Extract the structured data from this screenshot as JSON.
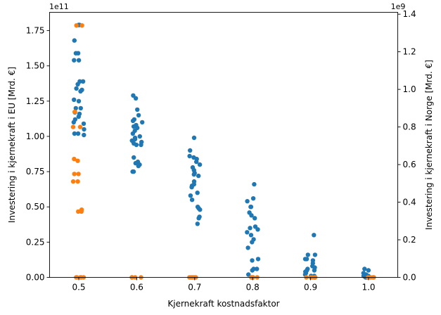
{
  "chart_data": {
    "type": "scatter",
    "xlabel": "Kjernekraft kostnadsfaktor",
    "ylabel_left": "Investering i kjernekraft i EU [Mrd. €]",
    "ylabel_right": "Investering i kjernekraft i Norge [Mrd. €]",
    "offset_left": "1e11",
    "offset_right": "1e9",
    "categories": [
      "0.5",
      "0.6",
      "0.7",
      "0.8",
      "0.9",
      "1.0"
    ],
    "ylim_left": [
      0,
      1.88
    ],
    "ylim_right": [
      0,
      1.41
    ],
    "yticks_left": [
      "0.00",
      "0.25",
      "0.50",
      "0.75",
      "1.00",
      "1.25",
      "1.50",
      "1.75"
    ],
    "yticks_right": [
      "0.0",
      "0.2",
      "0.4",
      "0.6",
      "0.8",
      "1.0",
      "1.2",
      "1.4"
    ],
    "series": [
      {
        "name": "EU",
        "axis": "left",
        "color": "#1f77b4",
        "points": [
          [
            0,
            1.79
          ],
          [
            0,
            1.79
          ],
          [
            0,
            1.68
          ],
          [
            0,
            1.59
          ],
          [
            0,
            1.59
          ],
          [
            0,
            1.54
          ],
          [
            0,
            1.54
          ],
          [
            0,
            1.39
          ],
          [
            0,
            1.39
          ],
          [
            0,
            1.37
          ],
          [
            0,
            1.34
          ],
          [
            0,
            1.33
          ],
          [
            0,
            1.32
          ],
          [
            0,
            1.26
          ],
          [
            0,
            1.25
          ],
          [
            0,
            1.2
          ],
          [
            0,
            1.2
          ],
          [
            0,
            1.17
          ],
          [
            0,
            1.16
          ],
          [
            0,
            1.14
          ],
          [
            0,
            1.12
          ],
          [
            0,
            1.1
          ],
          [
            0,
            1.09
          ],
          [
            0,
            1.05
          ],
          [
            0,
            1.02
          ],
          [
            0,
            1.02
          ],
          [
            0,
            1.01
          ],
          [
            1,
            1.29
          ],
          [
            1,
            1.27
          ],
          [
            1,
            1.19
          ],
          [
            1,
            1.15
          ],
          [
            1,
            1.12
          ],
          [
            1,
            1.11
          ],
          [
            1,
            1.1
          ],
          [
            1,
            1.08
          ],
          [
            1,
            1.07
          ],
          [
            1,
            1.06
          ],
          [
            1,
            1.04
          ],
          [
            1,
            1.02
          ],
          [
            1,
            1.0
          ],
          [
            1,
            0.99
          ],
          [
            1,
            0.98
          ],
          [
            1,
            0.97
          ],
          [
            1,
            0.96
          ],
          [
            1,
            0.95
          ],
          [
            1,
            0.94
          ],
          [
            1,
            0.94
          ],
          [
            1,
            0.85
          ],
          [
            1,
            0.82
          ],
          [
            1,
            0.81
          ],
          [
            1,
            0.8
          ],
          [
            1,
            0.79
          ],
          [
            1,
            0.75
          ],
          [
            1,
            0.75
          ],
          [
            2,
            0.99
          ],
          [
            2,
            0.9
          ],
          [
            2,
            0.86
          ],
          [
            2,
            0.85
          ],
          [
            2,
            0.84
          ],
          [
            2,
            0.82
          ],
          [
            2,
            0.8
          ],
          [
            2,
            0.78
          ],
          [
            2,
            0.76
          ],
          [
            2,
            0.74
          ],
          [
            2,
            0.73
          ],
          [
            2,
            0.72
          ],
          [
            2,
            0.68
          ],
          [
            2,
            0.66
          ],
          [
            2,
            0.65
          ],
          [
            2,
            0.64
          ],
          [
            2,
            0.6
          ],
          [
            2,
            0.58
          ],
          [
            2,
            0.55
          ],
          [
            2,
            0.5
          ],
          [
            2,
            0.49
          ],
          [
            2,
            0.48
          ],
          [
            2,
            0.43
          ],
          [
            2,
            0.42
          ],
          [
            2,
            0.38
          ],
          [
            3,
            0.66
          ],
          [
            3,
            0.56
          ],
          [
            3,
            0.54
          ],
          [
            3,
            0.5
          ],
          [
            3,
            0.5
          ],
          [
            3,
            0.46
          ],
          [
            3,
            0.44
          ],
          [
            3,
            0.42
          ],
          [
            3,
            0.36
          ],
          [
            3,
            0.35
          ],
          [
            3,
            0.34
          ],
          [
            3,
            0.32
          ],
          [
            3,
            0.3
          ],
          [
            3,
            0.27
          ],
          [
            3,
            0.25
          ],
          [
            3,
            0.21
          ],
          [
            3,
            0.13
          ],
          [
            3,
            0.12
          ],
          [
            3,
            0.06
          ],
          [
            3,
            0.06
          ],
          [
            3,
            0.05
          ],
          [
            3,
            0.02
          ],
          [
            4,
            0.3
          ],
          [
            4,
            0.16
          ],
          [
            4,
            0.16
          ],
          [
            4,
            0.13
          ],
          [
            4,
            0.13
          ],
          [
            4,
            0.12
          ],
          [
            4,
            0.1
          ],
          [
            4,
            0.08
          ],
          [
            4,
            0.07
          ],
          [
            4,
            0.06
          ],
          [
            4,
            0.05
          ],
          [
            4,
            0.05
          ],
          [
            4,
            0.04
          ],
          [
            4,
            0.03
          ],
          [
            4,
            0.02
          ],
          [
            4,
            0.01
          ],
          [
            4,
            0.01
          ],
          [
            4,
            0.0
          ],
          [
            5,
            0.06
          ],
          [
            5,
            0.05
          ],
          [
            5,
            0.03
          ],
          [
            5,
            0.02
          ],
          [
            5,
            0.01
          ],
          [
            5,
            0.01
          ],
          [
            5,
            0.0
          ],
          [
            5,
            0.0
          ]
        ]
      },
      {
        "name": "Norge",
        "axis": "right",
        "color": "#ff7f0e",
        "points": [
          [
            0,
            1.34
          ],
          [
            0,
            1.34
          ],
          [
            0,
            0.88
          ],
          [
            0,
            0.88
          ],
          [
            0,
            0.8
          ],
          [
            0,
            0.8
          ],
          [
            0,
            0.63
          ],
          [
            0,
            0.62
          ],
          [
            0,
            0.55
          ],
          [
            0,
            0.55
          ],
          [
            0,
            0.51
          ],
          [
            0,
            0.51
          ],
          [
            0,
            0.36
          ],
          [
            0,
            0.35
          ],
          [
            0,
            0.35
          ],
          [
            0,
            0.0
          ],
          [
            0,
            0.0
          ],
          [
            0,
            0.0
          ],
          [
            0,
            0.0
          ],
          [
            0,
            0.0
          ],
          [
            1,
            0.0
          ],
          [
            1,
            0.0
          ],
          [
            1,
            0.0
          ],
          [
            1,
            0.0
          ],
          [
            1,
            0.0
          ],
          [
            2,
            0.0
          ],
          [
            2,
            0.0
          ],
          [
            2,
            0.0
          ],
          [
            2,
            0.0
          ],
          [
            2,
            0.0
          ],
          [
            3,
            0.0
          ],
          [
            3,
            0.0
          ],
          [
            3,
            0.0
          ],
          [
            3,
            0.0
          ],
          [
            3,
            0.0
          ],
          [
            4,
            0.0
          ],
          [
            4,
            0.0
          ],
          [
            4,
            0.0
          ],
          [
            4,
            0.0
          ],
          [
            4,
            0.0
          ],
          [
            5,
            0.0
          ],
          [
            5,
            0.0
          ],
          [
            5,
            0.0
          ],
          [
            5,
            0.0
          ]
        ]
      }
    ]
  }
}
